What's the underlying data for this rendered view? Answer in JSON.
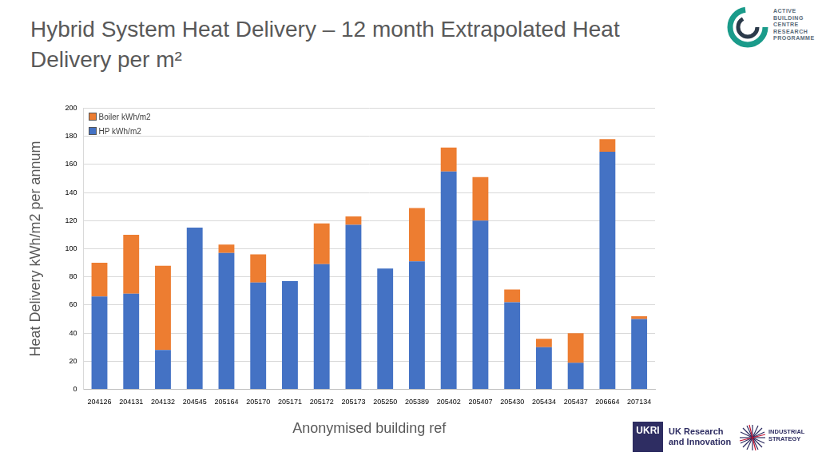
{
  "chart_data": {
    "type": "bar",
    "title": "Hybrid System Heat Delivery – 12 month Extrapolated Heat Delivery per m²",
    "x_label": "Anonymised building ref",
    "y_label": "Heat Delivery kWh/m2 per annum",
    "categories": [
      "204126",
      "204131",
      "204132",
      "204545",
      "205164",
      "205170",
      "205171",
      "205172",
      "205173",
      "205250",
      "205389",
      "205402",
      "205407",
      "205430",
      "205434",
      "205437",
      "206664",
      "207134"
    ],
    "series": [
      {
        "name": "HP kWh/m2",
        "color": "#4472c4",
        "values": [
          66,
          68,
          28,
          115,
          97,
          76,
          77,
          89,
          117,
          86,
          91,
          155,
          120,
          62,
          30,
          19,
          169,
          50
        ]
      },
      {
        "name": "Boiler kWh/m2",
        "color": "#ed7d31",
        "values": [
          24,
          42,
          60,
          0,
          6,
          20,
          0,
          29,
          6,
          0,
          38,
          17,
          31,
          9,
          6,
          21,
          9,
          2
        ]
      }
    ],
    "stacked": true,
    "ylim": [
      0,
      200
    ],
    "yticks": [
      0,
      20,
      40,
      60,
      80,
      100,
      120,
      140,
      160,
      180,
      200
    ],
    "grid": true,
    "legend": "upper left"
  },
  "logos": {
    "top_right": "ACTIVE BUILDING CENTRE RESEARCH PROGRAMME",
    "bottom_mark": "UKRI",
    "bottom_name": "UK Research and Innovation",
    "bottom_strategy": "INDUSTRIAL STRATEGY"
  }
}
